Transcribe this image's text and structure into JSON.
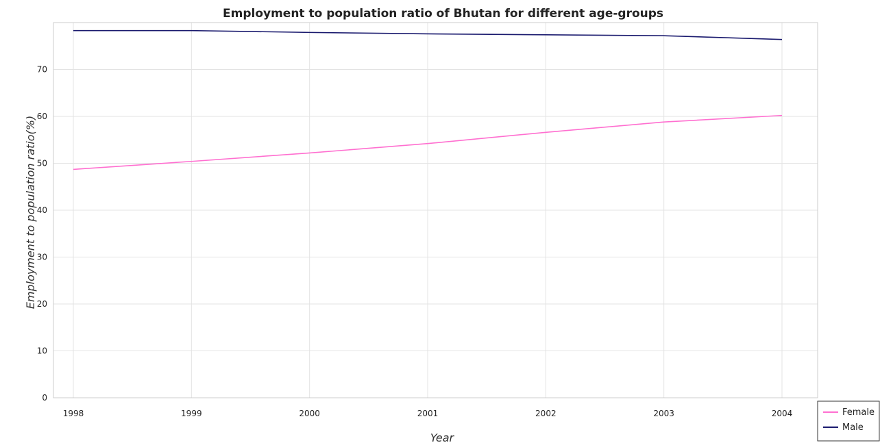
{
  "chart_data": {
    "type": "line",
    "title": "Employment to population ratio of Bhutan for different age-groups",
    "xlabel": "Year",
    "ylabel": "Employment to population ratio(%)",
    "categories": [
      "1998",
      "1999",
      "2000",
      "2001",
      "2002",
      "2003",
      "2004"
    ],
    "ylim": [
      0,
      80
    ],
    "yticks": [
      "0",
      "10",
      "20",
      "30",
      "40",
      "50",
      "60",
      "70"
    ],
    "grid": true,
    "legend_position": "bottom-right",
    "series": [
      {
        "name": "Female",
        "color": "#ff6fd0",
        "values": [
          48.7,
          50.4,
          52.2,
          54.2,
          56.6,
          58.8,
          60.2
        ]
      },
      {
        "name": "Male",
        "color": "#1a1a6e",
        "values": [
          78.3,
          78.3,
          77.9,
          77.6,
          77.4,
          77.2,
          76.4
        ]
      }
    ]
  }
}
